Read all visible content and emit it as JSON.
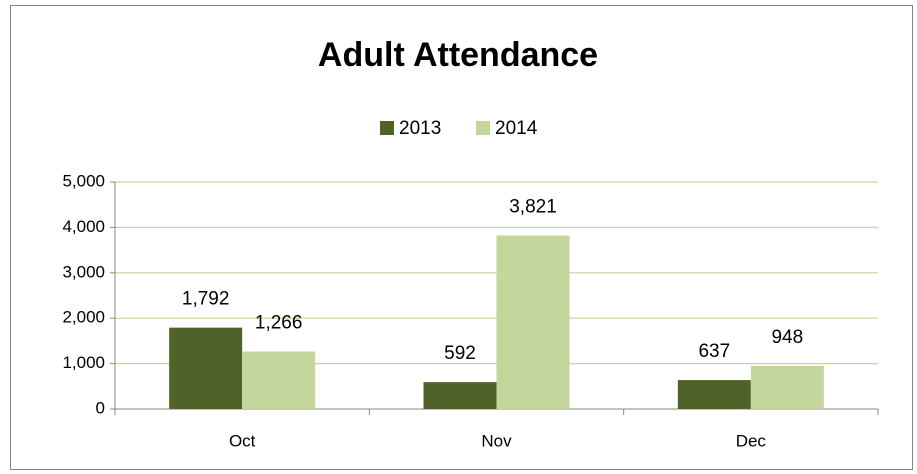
{
  "chart_data": {
    "type": "bar",
    "title": "Adult Attendance",
    "categories": [
      "Oct",
      "Nov",
      "Dec"
    ],
    "series": [
      {
        "name": "2013",
        "color": "#4f6228",
        "values": [
          1792,
          592,
          637
        ],
        "value_labels": [
          "1,792",
          "592",
          "637"
        ]
      },
      {
        "name": "2014",
        "color": "#c3d69b",
        "values": [
          1266,
          3821,
          948
        ],
        "value_labels": [
          "1,266",
          "3,821",
          "948"
        ]
      }
    ],
    "ylim": [
      0,
      5000
    ],
    "yticks": [
      0,
      {
        "value": 1000,
        "label": "1,000"
      },
      {
        "value": 2000,
        "label": "2,000"
      },
      {
        "value": 3000,
        "label": "3,000"
      },
      {
        "value": 4000,
        "label": "4,000"
      },
      {
        "value": 5000,
        "label": "5,000"
      }
    ],
    "grid": true,
    "legend": "top"
  }
}
